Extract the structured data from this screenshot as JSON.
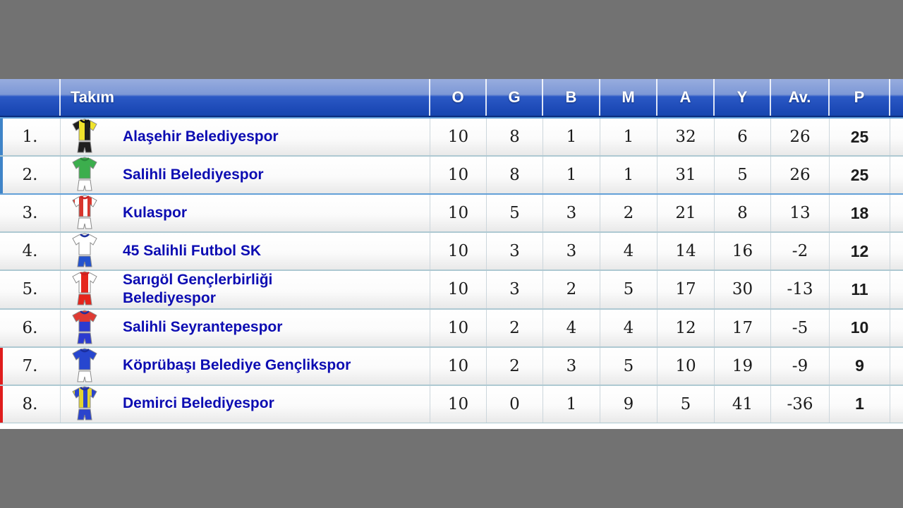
{
  "table": {
    "columns": [
      {
        "key": "team",
        "label": "Takım"
      },
      {
        "key": "o",
        "label": "O"
      },
      {
        "key": "g",
        "label": "G"
      },
      {
        "key": "b",
        "label": "B"
      },
      {
        "key": "m",
        "label": "M"
      },
      {
        "key": "a",
        "label": "A"
      },
      {
        "key": "y",
        "label": "Y"
      },
      {
        "key": "av",
        "label": "Av."
      },
      {
        "key": "p",
        "label": "P"
      }
    ],
    "rows": [
      {
        "rank": "1.",
        "team": "Alaşehir Belediyespor",
        "o": 10,
        "g": 8,
        "b": 1,
        "m": 1,
        "a": 32,
        "y": 6,
        "av": 26,
        "p": 25,
        "zone": "promotion",
        "jersey": {
          "icon": "black-yellow-quartered-kit-icon",
          "pattern": "halves",
          "colors": [
            "#f0e32c",
            "#1f1f1f"
          ],
          "shorts": "#1f1f1f",
          "collar": "#111111"
        }
      },
      {
        "rank": "2.",
        "team": "Salihli Belediyespor",
        "o": 10,
        "g": 8,
        "b": 1,
        "m": 1,
        "a": 31,
        "y": 5,
        "av": 26,
        "p": 25,
        "zone": "promotion",
        "jersey": {
          "icon": "green-white-kit-icon",
          "pattern": "solid",
          "colors": [
            "#3cae4d"
          ],
          "shorts": "#ffffff",
          "collar": "#2a8a3a"
        }
      },
      {
        "rank": "3.",
        "team": "Kulaspor",
        "o": 10,
        "g": 5,
        "b": 3,
        "m": 2,
        "a": 21,
        "y": 8,
        "av": 13,
        "p": 18,
        "zone": "mid",
        "jersey": {
          "icon": "red-white-striped-kit-icon",
          "pattern": "stripes",
          "colors": [
            "#d8352c",
            "#ffffff"
          ],
          "shorts": "#ffffff",
          "collar": "#c22"
        }
      },
      {
        "rank": "4.",
        "team": "45 Salihli Futbol SK",
        "o": 10,
        "g": 3,
        "b": 3,
        "m": 4,
        "a": 14,
        "y": 16,
        "av": -2,
        "p": 12,
        "zone": "mid",
        "jersey": {
          "icon": "white-blue-kit-icon",
          "pattern": "solid",
          "colors": [
            "#ffffff"
          ],
          "shorts": "#2453cd",
          "collar": "#1b2f9e"
        }
      },
      {
        "rank": "5.",
        "team": "Sarıgöl Gençlerbirliği\nBelediyespor",
        "o": 10,
        "g": 3,
        "b": 2,
        "m": 5,
        "a": 17,
        "y": 30,
        "av": -13,
        "p": 11,
        "zone": "mid",
        "jersey": {
          "icon": "white-red-centerstripe-kit-icon",
          "pattern": "centerstripe",
          "colors": [
            "#ffffff",
            "#e5251c"
          ],
          "shorts": "#e5251c",
          "collar": "#c22"
        }
      },
      {
        "rank": "6.",
        "team": "Salihli Seyrantepespor",
        "o": 10,
        "g": 2,
        "b": 4,
        "m": 4,
        "a": 12,
        "y": 17,
        "av": -5,
        "p": 10,
        "zone": "mid",
        "jersey": {
          "icon": "red-blue-kit-icon",
          "pattern": "horizontal",
          "colors": [
            "#df3a33",
            "#2c3bd0"
          ],
          "shorts": "#2c3bd0",
          "collar": "#22309e"
        }
      },
      {
        "rank": "7.",
        "team": "Köprübaşı Belediye Gençlikspor",
        "o": 10,
        "g": 2,
        "b": 3,
        "m": 5,
        "a": 10,
        "y": 19,
        "av": -9,
        "p": 9,
        "zone": "relegation",
        "jersey": {
          "icon": "blue-white-kit-icon",
          "pattern": "solid",
          "colors": [
            "#2746cf"
          ],
          "shorts": "#ffffff",
          "collar": "#1b2f9e"
        }
      },
      {
        "rank": "8.",
        "team": "Demirci Belediyespor",
        "o": 10,
        "g": 0,
        "b": 1,
        "m": 9,
        "a": 5,
        "y": 41,
        "av": -36,
        "p": 1,
        "zone": "relegation",
        "jersey": {
          "icon": "yellow-blue-striped-kit-icon",
          "pattern": "stripes",
          "colors": [
            "#e3d52f",
            "#2b44cc"
          ],
          "shorts": "#2b44cc",
          "collar": "#22309e"
        }
      }
    ]
  },
  "colors": {
    "page_background": "#727272",
    "header_top": "#97acde",
    "header_bottom": "#1746af",
    "team_name": "#0c0cb2",
    "promotion_marker": "#3f84c8",
    "relegation_marker": "#e01d1d",
    "row_separator": "#aec9d2"
  }
}
